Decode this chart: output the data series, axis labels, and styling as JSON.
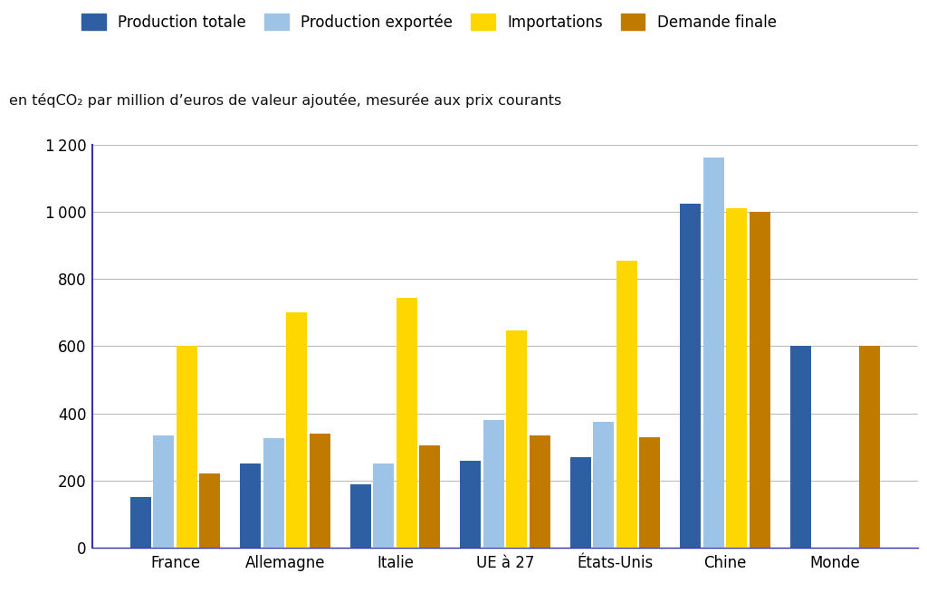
{
  "categories": [
    "France",
    "Allemagne",
    "Italie",
    "UE à 27",
    "États-Unis",
    "Chine",
    "Monde"
  ],
  "series": {
    "Production totale": [
      150,
      250,
      190,
      260,
      270,
      1025,
      600
    ],
    "Production exportée": [
      335,
      325,
      250,
      380,
      375,
      1160,
      0
    ],
    "Importations": [
      600,
      700,
      745,
      648,
      855,
      1010,
      0
    ],
    "Demande finale": [
      220,
      340,
      305,
      335,
      330,
      1000,
      600
    ]
  },
  "colors": {
    "Production totale": "#2E5FA3",
    "Production exportée": "#9DC3E6",
    "Importations": "#FFD700",
    "Demande finale": "#C07A00"
  },
  "ylim": [
    0,
    1200
  ],
  "yticks": [
    0,
    200,
    400,
    600,
    800,
    1000,
    1200
  ],
  "subtitle": "en téqCO₂ par million d’euros de valeur ajoutée, mesurée aux prix courants",
  "legend_labels": [
    "Production totale",
    "Production exportée",
    "Importations",
    "Demande finale"
  ],
  "background_color": "#FFFFFF",
  "grid_color": "#BBBBBB",
  "bar_width": 0.19,
  "bar_spacing": 0.02
}
